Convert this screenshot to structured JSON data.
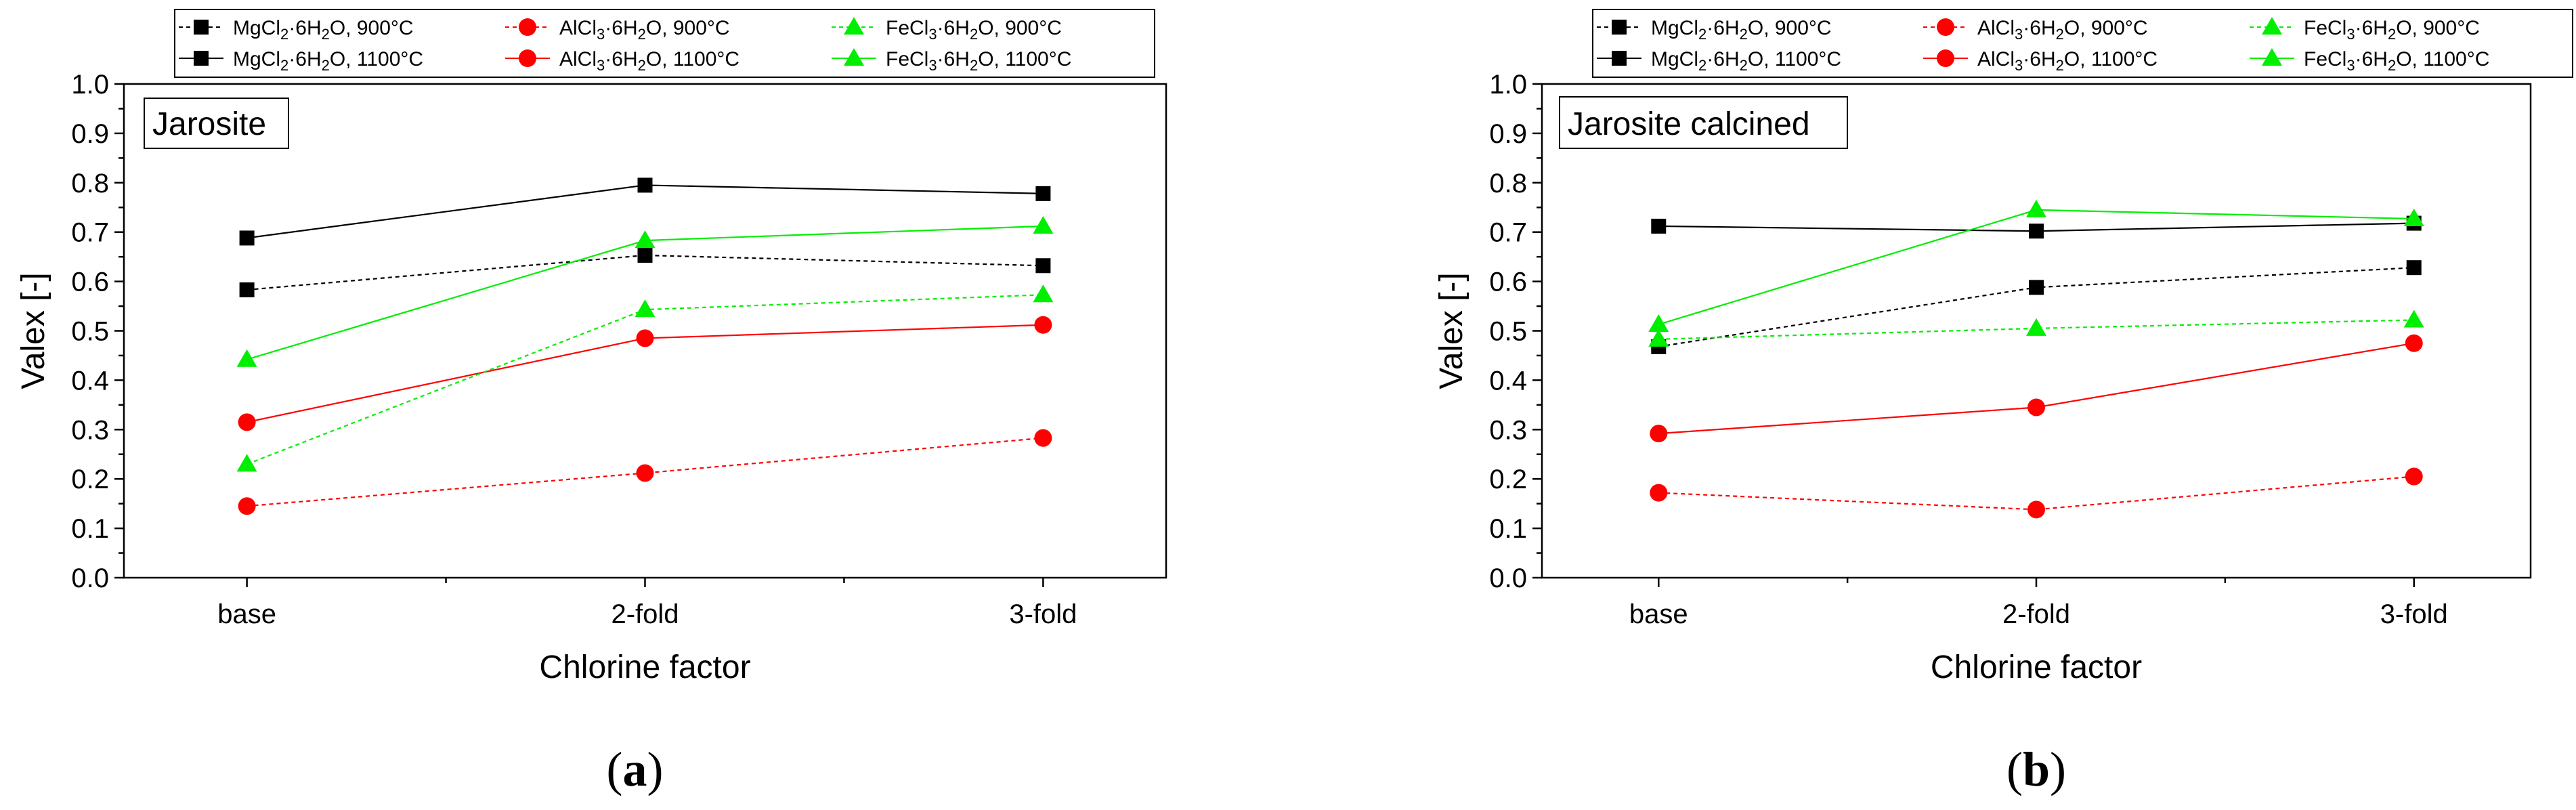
{
  "chart_data": [
    {
      "type": "line",
      "panel_label": "Jarosite",
      "caption_letter": "a",
      "categories": [
        "base",
        "2-fold",
        "3-fold"
      ],
      "xlabel": "Chlorine factor",
      "ylabel": "Valex [-]",
      "ylim": [
        0.0,
        1.0
      ],
      "yticks": [
        "0.0",
        "0.1",
        "0.2",
        "0.3",
        "0.4",
        "0.5",
        "0.6",
        "0.7",
        "0.8",
        "0.9",
        "1.0"
      ],
      "series": [
        {
          "name": "MgCl2·6H2O, 900°C",
          "values": [
            0.583,
            0.653,
            0.632
          ]
        },
        {
          "name": "MgCl2·6H2O, 1100°C",
          "values": [
            0.688,
            0.795,
            0.778
          ]
        },
        {
          "name": "AlCl3·6H2O, 900°C",
          "values": [
            0.145,
            0.212,
            0.283
          ]
        },
        {
          "name": "AlCl3·6H2O, 1100°C",
          "values": [
            0.315,
            0.485,
            0.512
          ]
        },
        {
          "name": "FeCl3·6H2O, 900°C",
          "values": [
            0.23,
            0.543,
            0.573
          ]
        },
        {
          "name": "FeCl3·6H2O, 1100°C",
          "values": [
            0.442,
            0.683,
            0.712
          ]
        }
      ]
    },
    {
      "type": "line",
      "panel_label": "Jarosite calcined",
      "caption_letter": "b",
      "categories": [
        "base",
        "2-fold",
        "3-fold"
      ],
      "xlabel": "Chlorine factor",
      "ylabel": "Valex [-]",
      "ylim": [
        0.0,
        1.0
      ],
      "yticks": [
        "0.0",
        "0.1",
        "0.2",
        "0.3",
        "0.4",
        "0.5",
        "0.6",
        "0.7",
        "0.8",
        "0.9",
        "1.0"
      ],
      "series": [
        {
          "name": "MgCl2·6H2O, 900°C",
          "values": [
            0.468,
            0.588,
            0.628
          ]
        },
        {
          "name": "MgCl2·6H2O, 1100°C",
          "values": [
            0.712,
            0.702,
            0.718
          ]
        },
        {
          "name": "AlCl3·6H2O, 900°C",
          "values": [
            0.172,
            0.138,
            0.205
          ]
        },
        {
          "name": "AlCl3·6H2O, 1100°C",
          "values": [
            0.292,
            0.345,
            0.475
          ]
        },
        {
          "name": "FeCl3·6H2O, 900°C",
          "values": [
            0.483,
            0.505,
            0.522
          ]
        },
        {
          "name": "FeCl3·6H2O, 1100°C",
          "values": [
            0.513,
            0.745,
            0.727
          ]
        }
      ]
    }
  ],
  "series_styles": [
    {
      "compound": "MgCl",
      "sub1": "2",
      "color": "#000000",
      "marker": "square",
      "dashed": true,
      "temp": "900°C"
    },
    {
      "compound": "MgCl",
      "sub1": "2",
      "color": "#000000",
      "marker": "square",
      "dashed": false,
      "temp": "1100°C"
    },
    {
      "compound": "AlCl",
      "sub1": "3",
      "color": "#ff0000",
      "marker": "circle",
      "dashed": true,
      "temp": "900°C"
    },
    {
      "compound": "AlCl",
      "sub1": "3",
      "color": "#ff0000",
      "marker": "circle",
      "dashed": false,
      "temp": "1100°C"
    },
    {
      "compound": "FeCl",
      "sub1": "3",
      "color": "#00ee00",
      "marker": "triangle",
      "dashed": true,
      "temp": "900°C"
    },
    {
      "compound": "FeCl",
      "sub1": "3",
      "color": "#00ee00",
      "marker": "triangle",
      "dashed": false,
      "temp": "1100°C"
    }
  ]
}
